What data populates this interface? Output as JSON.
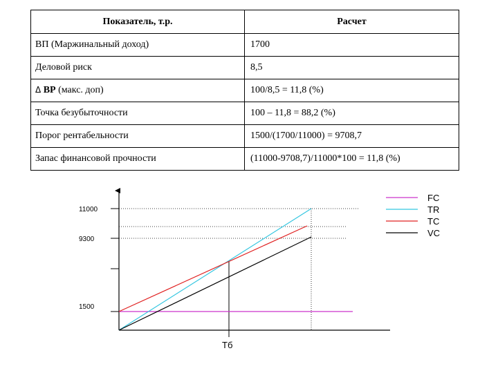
{
  "table": {
    "headers": [
      "Показатель, т.р.",
      "Расчет"
    ],
    "rows": [
      {
        "label": "ВП (Маржинальный доход)",
        "value": "1700"
      },
      {
        "label": "Деловой риск",
        "value": "8,5"
      },
      {
        "label_symbol": "Δ",
        "label_bold": "ВР",
        "label_rest": "(макс. доп)",
        "value": "100/8,5 = 11,8 (%)"
      },
      {
        "label": "Точка безубыточности",
        "value": "100 – 11,8 = 88,2 (%)"
      },
      {
        "label": "Порог рентабельности",
        "value": "1500/(1700/11000) = 9708,7"
      },
      {
        "label": "Запас финансовой прочности",
        "value": "(11000-9708,7)/11000*100 = 11,8 (%)"
      }
    ]
  },
  "chart": {
    "y_tick_labels": [
      "11000",
      "9300",
      "1500"
    ],
    "x_marker_label": "Тб",
    "legend": [
      {
        "label": "FC",
        "color": "#cc33cc"
      },
      {
        "label": "TR",
        "color": "#33c6e0"
      },
      {
        "label": "TC",
        "color": "#e02020"
      },
      {
        "label": "VC",
        "color": "#000000"
      }
    ]
  },
  "chart_data": {
    "type": "line",
    "y_ticks": [
      11000,
      9300,
      1500
    ],
    "x_marker": "Тб",
    "series": [
      {
        "name": "FC",
        "color": "#cc33cc"
      },
      {
        "name": "TR",
        "color": "#33c6e0"
      },
      {
        "name": "TC",
        "color": "#e02020"
      },
      {
        "name": "VC",
        "color": "#000000"
      }
    ]
  }
}
